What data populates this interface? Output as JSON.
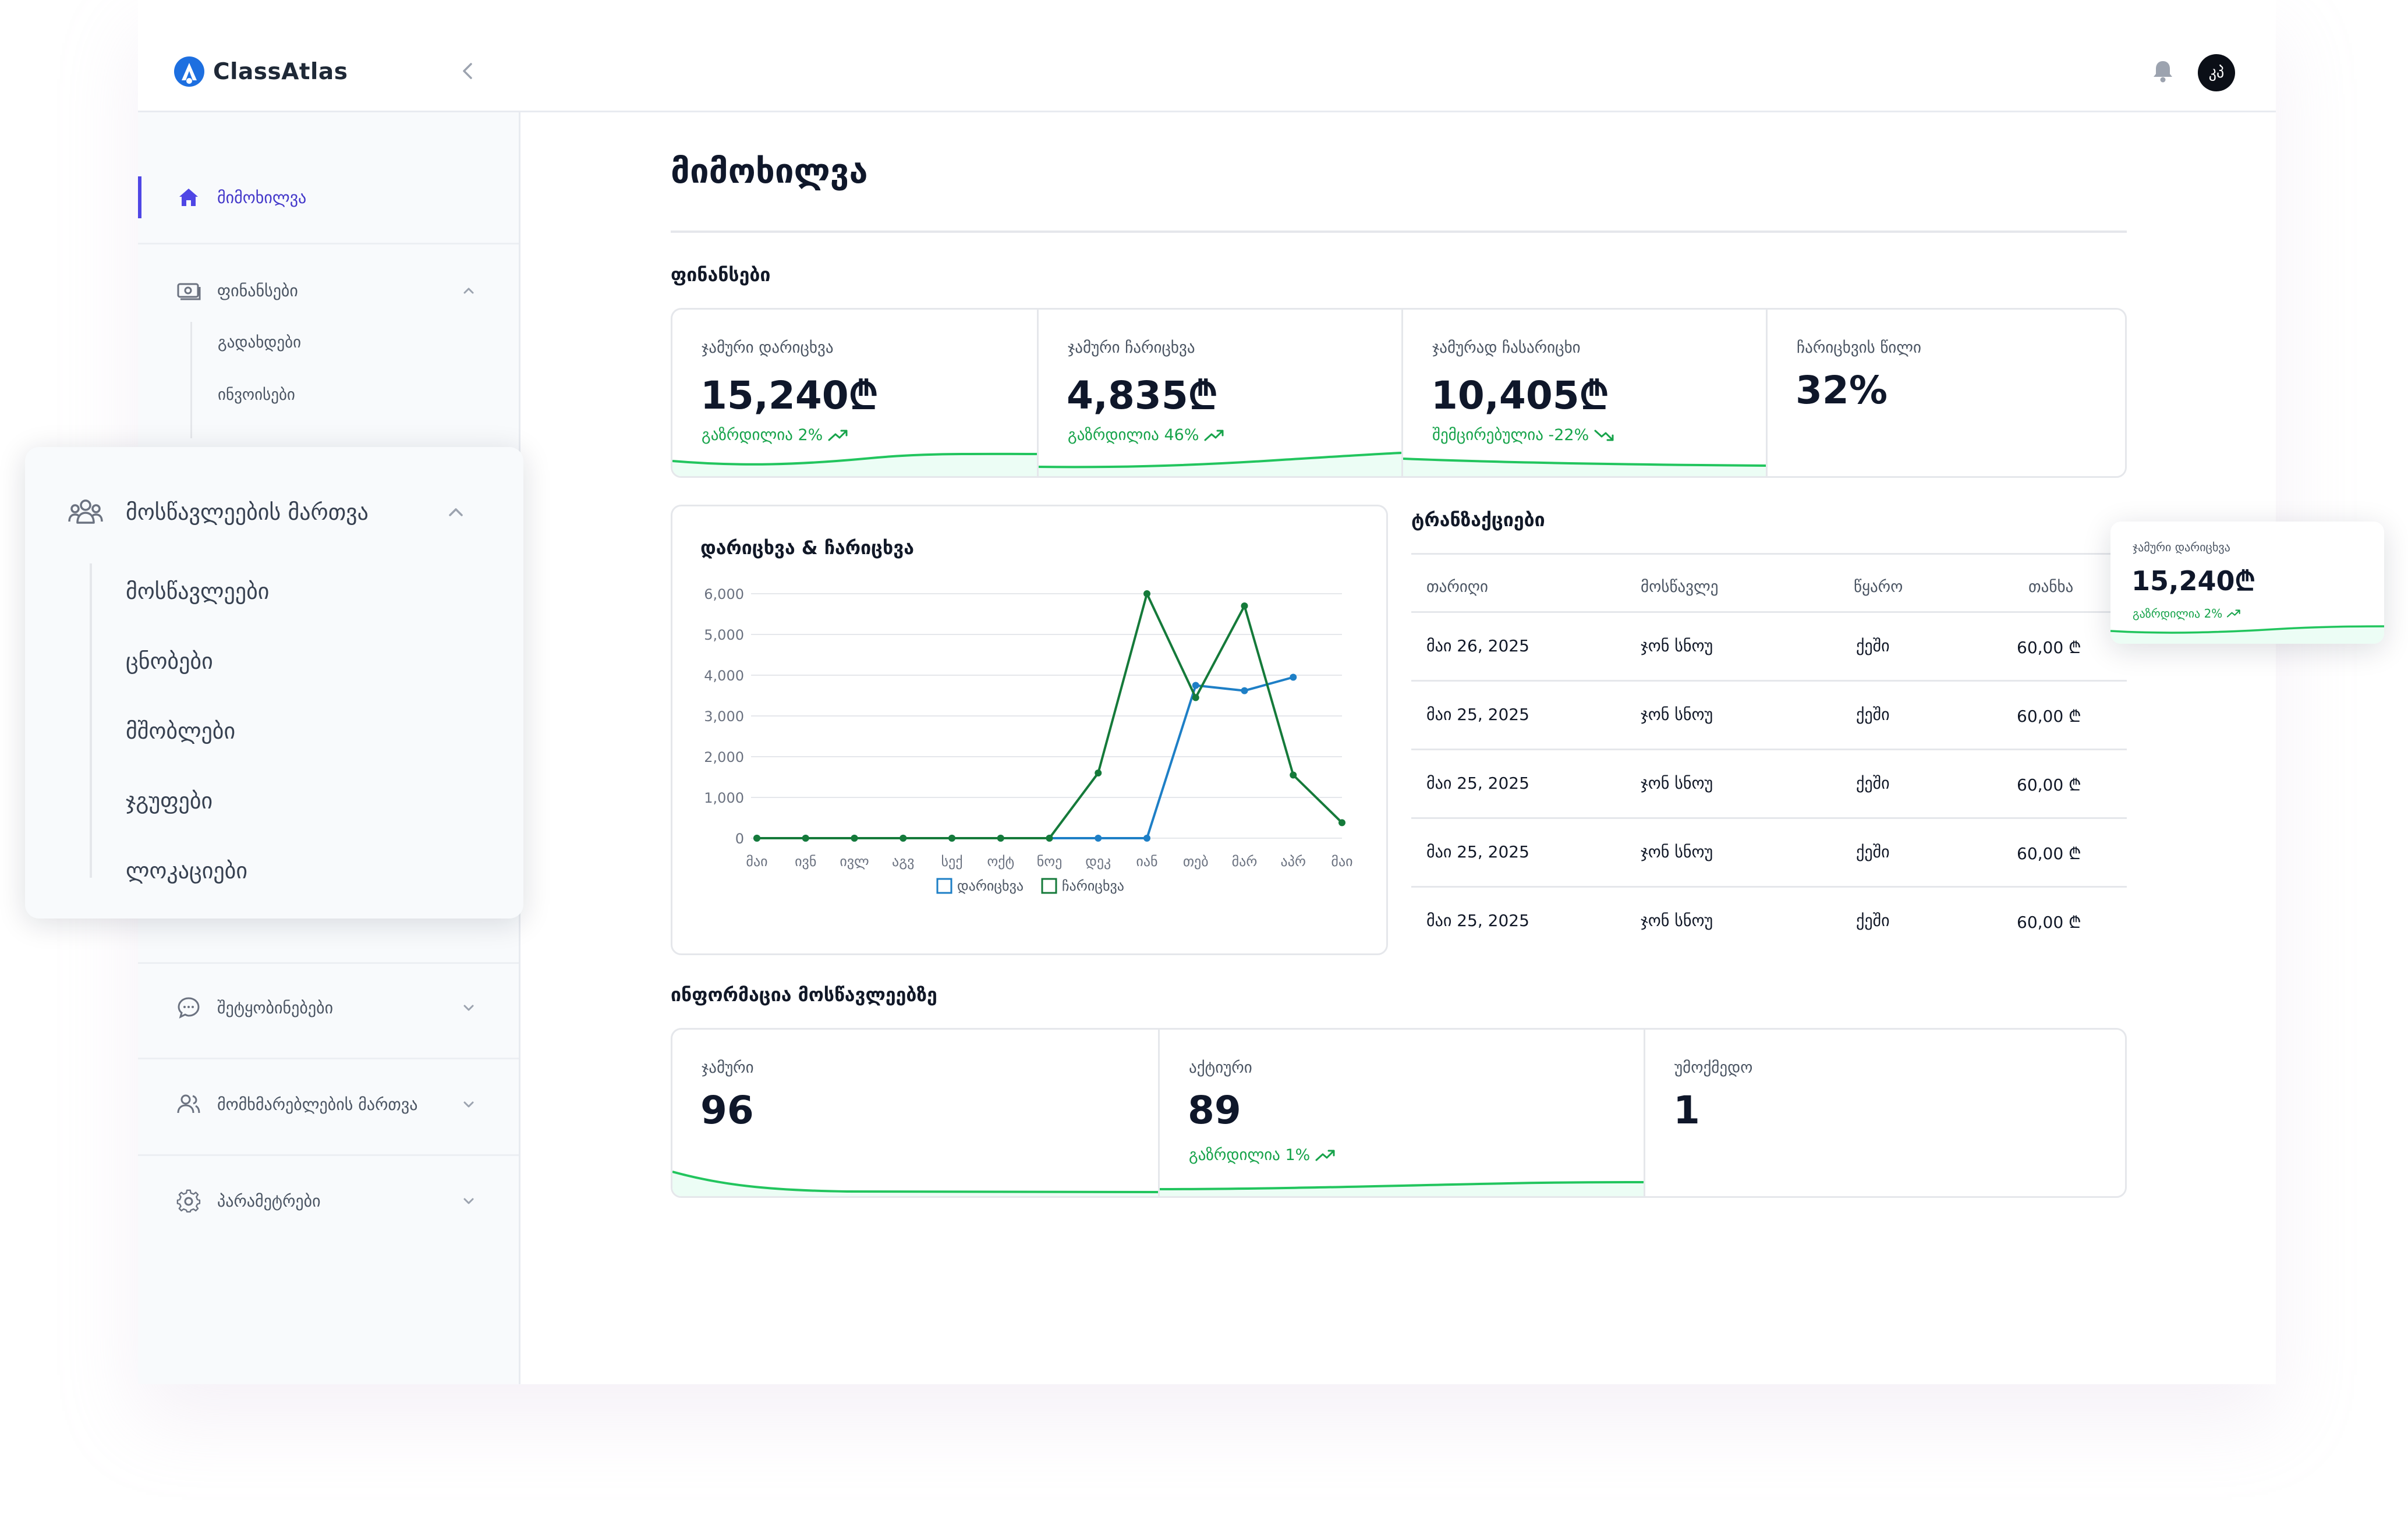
{
  "app": {
    "brand": "ClassAtlas",
    "avatar_initials": "კპ"
  },
  "icons": {
    "brand": "brand-logo-icon",
    "collapse": "chevron-left-icon",
    "notifications": "bell-icon"
  },
  "colors": {
    "accent": "#4f46e5",
    "primary_blue": "#1d4ed8",
    "green": "#16a34a",
    "red": "#dc2626",
    "series_income": "#1e7fc6",
    "series_expense": "#157a3a"
  },
  "sidebar": {
    "overview": {
      "label": "მიმოხილვა",
      "icon": "home-icon"
    },
    "finances": {
      "label": "ფინანსები",
      "icon": "money-icon",
      "items": [
        "გადახდები",
        "ინვოისები"
      ]
    },
    "messages": {
      "label": "შეტყობინებები",
      "icon": "chat-icon"
    },
    "users": {
      "label": "მომხმარებლების მართვა",
      "icon": "users-icon"
    },
    "settings": {
      "label": "პარამეტრები",
      "icon": "gear-icon"
    }
  },
  "overlay_menu": {
    "title": "მოსწავლეების მართვა",
    "icon": "students-icon",
    "items": [
      "მოსწავლეები",
      "ცნობები",
      "მშობლები",
      "ჯგუფები",
      "ლოკაციები"
    ]
  },
  "page": {
    "title": "მიმოხილვა"
  },
  "finance": {
    "title": "ფინანსები",
    "stats": [
      {
        "label": "ჯამური დარიცხვა",
        "value": "15,240₾",
        "trend": "გაზრდილია 2%",
        "trend_dir": "up"
      },
      {
        "label": "ჯამური ჩარიცხვა",
        "value": "4,835₾",
        "trend": "გაზრდილია 46%",
        "trend_dir": "up"
      },
      {
        "label": "ჯამურად ჩასარიცხი",
        "value": "10,405₾",
        "trend": "შემცირებულია -22%",
        "trend_dir": "down"
      },
      {
        "label": "ჩარიცხვის წილი",
        "value": "32%"
      }
    ]
  },
  "chart_data": {
    "type": "line",
    "title": "დარიცხვა & ჩარიცხვა",
    "categories": [
      "მაი",
      "ივნ",
      "ივლ",
      "აგვ",
      "სექ",
      "ოქტ",
      "ნოე",
      "დეკ",
      "იან",
      "თებ",
      "მარ",
      "აპრ",
      "მაი"
    ],
    "series": [
      {
        "name": "დარიცხვა",
        "values": [
          0,
          0,
          0,
          0,
          0,
          0,
          0,
          0,
          0,
          3750,
          3620,
          3950,
          null
        ]
      },
      {
        "name": "ჩარიცხვა",
        "values": [
          0,
          0,
          0,
          0,
          0,
          0,
          0,
          1600,
          6000,
          3450,
          5700,
          1550,
          380
        ]
      }
    ],
    "yticks": [
      "0",
      "1,000",
      "2,000",
      "3,000",
      "4,000",
      "5,000",
      "6,000"
    ],
    "ylim": [
      0,
      6000
    ],
    "grid": true,
    "legend": "bottom"
  },
  "transactions": {
    "title": "ტრანზაქციები",
    "columns": [
      "თარიღი",
      "მოსწავლე",
      "წყარო",
      "თანხა"
    ],
    "rows": [
      {
        "date": "მაი 26, 2025",
        "student": "ჯონ სნოუ",
        "source": "ქეში",
        "amount": "60,00 ₾"
      },
      {
        "date": "მაი 25, 2025",
        "student": "ჯონ სნოუ",
        "source": "ქეში",
        "amount": "60,00 ₾"
      },
      {
        "date": "მაი 25, 2025",
        "student": "ჯონ სნოუ",
        "source": "ქეში",
        "amount": "60,00 ₾"
      },
      {
        "date": "მაი 25, 2025",
        "student": "ჯონ სნოუ",
        "source": "ქეში",
        "amount": "60,00 ₾"
      },
      {
        "date": "მაი 25, 2025",
        "student": "ჯონ სნოუ",
        "source": "ქეში",
        "amount": "60,00 ₾"
      }
    ]
  },
  "students": {
    "title": "ინფორმაცია მოსწავლეებზე",
    "stats": [
      {
        "label": "ჯამური",
        "value": "96"
      },
      {
        "label": "აქტიური",
        "value": "89",
        "trend": "გაზრდილია 1%",
        "trend_dir": "up"
      },
      {
        "label": "უმოქმედო",
        "value": "1"
      }
    ]
  },
  "floating_card": {
    "label": "ჯამური დარიცხვა",
    "value": "15,240₾",
    "trend": "გაზრდილია 2%"
  }
}
